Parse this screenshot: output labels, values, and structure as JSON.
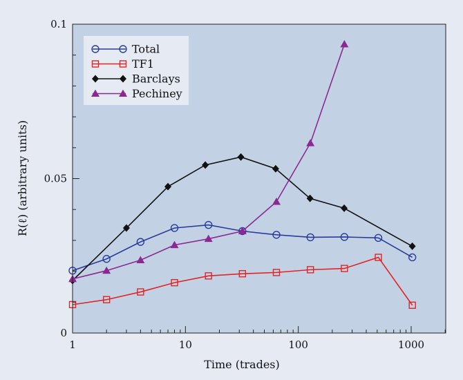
{
  "chart_data": {
    "type": "line",
    "xlabel": "Time (trades)",
    "ylabel": "R(ℓ) (arbitrary units)",
    "xscale": "log",
    "xlim": [
      1,
      2000
    ],
    "ylim": [
      0,
      0.1
    ],
    "xticks": [
      1,
      10,
      100,
      1000
    ],
    "xtick_labels": [
      "1",
      "10",
      "100",
      "1000"
    ],
    "yticks": [
      0,
      0.05,
      0.1
    ],
    "ytick_labels": [
      "0",
      "0.05",
      "0.1"
    ],
    "grid": false,
    "legend_position": "top-left",
    "plot_background": "#c2d2e4",
    "series": [
      {
        "name": "Total",
        "color": "#2b3a9a",
        "marker": "open-circle",
        "x": [
          1,
          2,
          4,
          8,
          16,
          32,
          64,
          128,
          256,
          512,
          1024
        ],
        "y": [
          0.0202,
          0.024,
          0.0295,
          0.034,
          0.035,
          0.033,
          0.0318,
          0.031,
          0.0311,
          0.0308,
          0.0245
        ]
      },
      {
        "name": "TF1",
        "color": "#e02424",
        "marker": "open-square",
        "x": [
          1,
          2,
          4,
          8,
          16,
          32,
          64,
          128,
          256,
          512,
          1024
        ],
        "y": [
          0.0092,
          0.0108,
          0.0133,
          0.0163,
          0.0185,
          0.0192,
          0.0196,
          0.0205,
          0.0209,
          0.0245,
          0.009
        ]
      },
      {
        "name": "Barclays",
        "color": "#111111",
        "marker": "filled-diamond",
        "x": [
          1,
          3,
          7,
          15,
          31,
          63,
          127,
          255,
          1023
        ],
        "y": [
          0.017,
          0.034,
          0.0474,
          0.0544,
          0.057,
          0.0532,
          0.0436,
          0.0404,
          0.0281
        ]
      },
      {
        "name": "Pechiney",
        "color": "#8a2a90",
        "marker": "filled-triangle",
        "x": [
          1,
          2,
          4,
          8,
          16,
          32,
          64,
          128,
          256
        ],
        "y": [
          0.0175,
          0.0202,
          0.0236,
          0.0285,
          0.0305,
          0.033,
          0.0425,
          0.0615,
          0.0935
        ]
      }
    ]
  }
}
